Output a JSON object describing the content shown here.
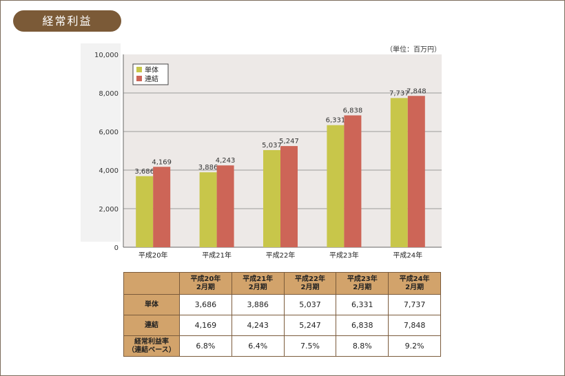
{
  "header": {
    "title": "経常利益"
  },
  "unit_label": "（単位：百万円）",
  "colors": {
    "single": "#c8c64a",
    "consolidated": "#cd6557",
    "title_bg": "#7b5a37",
    "table_header": "#d2a36b"
  },
  "chart_data": {
    "type": "bar",
    "categories": [
      "平成20年",
      "平成21年",
      "平成22年",
      "平成23年",
      "平成24年"
    ],
    "series": [
      {
        "name": "単体",
        "values": [
          3686,
          3886,
          5037,
          6331,
          7737
        ],
        "labels": [
          "3,686",
          "3,886",
          "5,037",
          "6,331",
          "7,737"
        ]
      },
      {
        "name": "連結",
        "values": [
          4169,
          4243,
          5247,
          6838,
          7848
        ],
        "labels": [
          "4,169",
          "4,243",
          "5,247",
          "6,838",
          "7,848"
        ]
      }
    ],
    "ylim": [
      0,
      10000
    ],
    "yticks": [
      "0",
      "2,000",
      "4,000",
      "6,000",
      "8,000",
      "10,000"
    ],
    "grid": true,
    "legend_position": "top-left"
  },
  "table": {
    "columns": [
      [
        "平成20年",
        "2月期"
      ],
      [
        "平成21年",
        "2月期"
      ],
      [
        "平成22年",
        "2月期"
      ],
      [
        "平成23年",
        "2月期"
      ],
      [
        "平成24年",
        "2月期"
      ]
    ],
    "rows": [
      {
        "label": [
          "単体"
        ],
        "values": [
          "3,686",
          "3,886",
          "5,037",
          "6,331",
          "7,737"
        ]
      },
      {
        "label": [
          "連結"
        ],
        "values": [
          "4,169",
          "4,243",
          "5,247",
          "6,838",
          "7,848"
        ]
      },
      {
        "label": [
          "経常利益率",
          "（連結ベース）"
        ],
        "values": [
          "6.8%",
          "6.4%",
          "7.5%",
          "8.8%",
          "9.2%"
        ]
      }
    ]
  }
}
